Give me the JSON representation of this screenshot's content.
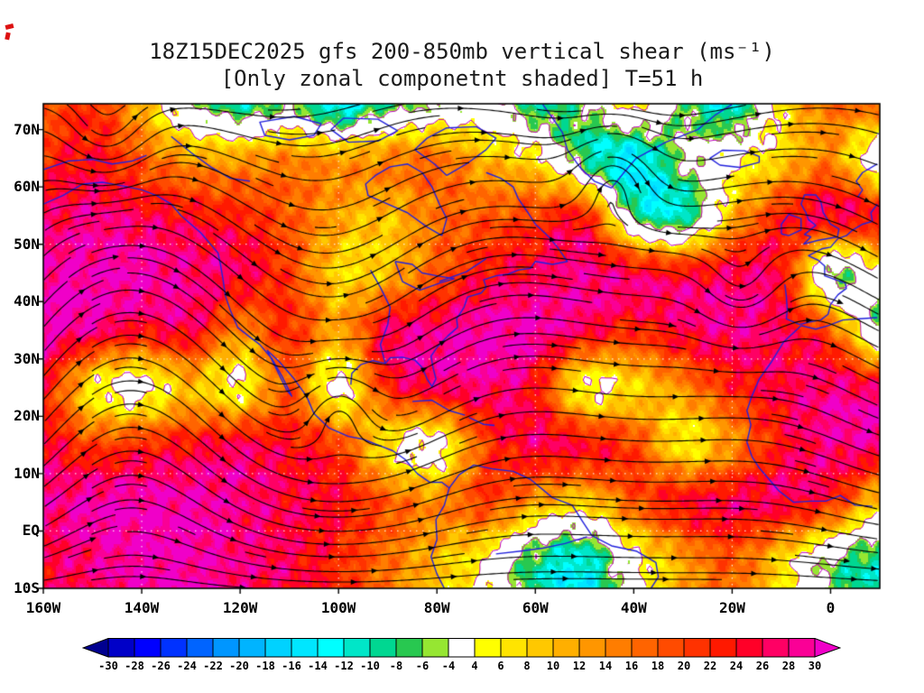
{
  "title": {
    "line1": "18Z15DEC2025 gfs 200-850mb vertical shear (ms⁻¹)",
    "line2": "[Only zonal componetnt shaded] T=51 h"
  },
  "chart_data": {
    "type": "heatmap",
    "title": "18Z15DEC2025 gfs 200-850mb vertical shear (ms⁻¹)",
    "subtitle": "[Only zonal componetnt shaded] T=51 h",
    "model": "gfs",
    "init_time": "18Z15DEC2025",
    "level": "200-850mb",
    "forecast_hour": "T=51 h",
    "units": "ms⁻¹",
    "projection": "latlon",
    "x_axis": {
      "range_lon": [
        -160,
        10
      ],
      "ticks": [
        {
          "label": "160W",
          "lon": -160
        },
        {
          "label": "140W",
          "lon": -140
        },
        {
          "label": "120W",
          "lon": -120
        },
        {
          "label": "100W",
          "lon": -100
        },
        {
          "label": "80W",
          "lon": -80
        },
        {
          "label": "60W",
          "lon": -60
        },
        {
          "label": "40W",
          "lon": -40
        },
        {
          "label": "20W",
          "lon": -20
        },
        {
          "label": "0",
          "lon": 0
        }
      ]
    },
    "y_axis": {
      "range_lat": [
        -10,
        74.5
      ],
      "ticks": [
        {
          "label": "70N",
          "lat": 70
        },
        {
          "label": "60N",
          "lat": 60
        },
        {
          "label": "50N",
          "lat": 50
        },
        {
          "label": "40N",
          "lat": 40
        },
        {
          "label": "30N",
          "lat": 30
        },
        {
          "label": "20N",
          "lat": 20
        },
        {
          "label": "10N",
          "lat": 10
        },
        {
          "label": "EQ",
          "lat": 0
        },
        {
          "label": "10S",
          "lat": -10
        }
      ]
    },
    "colorbar": {
      "orientation": "horizontal",
      "levels": [
        -30,
        -28,
        -26,
        -24,
        -22,
        -20,
        -18,
        -16,
        -14,
        -12,
        -10,
        -8,
        -6,
        -4,
        4,
        6,
        8,
        10,
        12,
        14,
        16,
        18,
        20,
        22,
        24,
        26,
        28,
        30
      ],
      "tick_labels": [
        "-30",
        "-28",
        "-26",
        "-24",
        "-22",
        "-20",
        "-18",
        "-16",
        "-14",
        "-12",
        "-10",
        "-8",
        "-6",
        "-4",
        "4",
        "6",
        "8",
        "10",
        "12",
        "14",
        "16",
        "18",
        "20",
        "22",
        "24",
        "26",
        "28",
        "30"
      ],
      "colors": [
        "#000090",
        "#0000c8",
        "#0000ff",
        "#0032ff",
        "#0064ff",
        "#0096ff",
        "#00b4ff",
        "#00d2ff",
        "#00e6ff",
        "#00ffff",
        "#00e6c8",
        "#00d791",
        "#28c850",
        "#96e632",
        "#ffffff",
        "#ffff00",
        "#ffe400",
        "#ffc800",
        "#ffaf00",
        "#ff9600",
        "#ff7d00",
        "#ff6400",
        "#ff4b00",
        "#ff3200",
        "#ff1900",
        "#ff0028",
        "#ff0064",
        "#fa0096",
        "#f000c8"
      ]
    },
    "field_grid": {
      "comment": "approximate zonal shear values (ms-1) read from shading",
      "lats": [
        75,
        65,
        55,
        45,
        35,
        25,
        15,
        5,
        -5
      ],
      "lons": [
        -160,
        -150,
        -140,
        -130,
        -120,
        -110,
        -100,
        -90,
        -80,
        -70,
        -60,
        -50,
        -40,
        -30,
        -20,
        -10,
        0,
        10
      ],
      "values": [
        [
          18,
          22,
          10,
          -4,
          -10,
          -6,
          -16,
          -8,
          -4,
          -2,
          -10,
          -4,
          6,
          -6,
          -12,
          6,
          16,
          18
        ],
        [
          22,
          24,
          18,
          12,
          12,
          14,
          12,
          14,
          16,
          10,
          6,
          -8,
          -14,
          -4,
          2,
          8,
          14,
          -2
        ],
        [
          26,
          28,
          26,
          24,
          22,
          18,
          12,
          10,
          16,
          18,
          20,
          22,
          -6,
          -10,
          10,
          22,
          26,
          24
        ],
        [
          30,
          30,
          30,
          28,
          26,
          20,
          8,
          10,
          18,
          24,
          26,
          28,
          26,
          24,
          26,
          24,
          -4,
          2
        ],
        [
          30,
          28,
          24,
          26,
          14,
          22,
          12,
          26,
          28,
          30,
          30,
          26,
          22,
          26,
          28,
          26,
          18,
          -4
        ],
        [
          24,
          6,
          2,
          10,
          4,
          18,
          2,
          22,
          26,
          28,
          24,
          4,
          8,
          14,
          22,
          26,
          28,
          26
        ],
        [
          26,
          20,
          22,
          24,
          26,
          24,
          20,
          6,
          2,
          20,
          26,
          24,
          20,
          6,
          14,
          24,
          28,
          28
        ],
        [
          28,
          30,
          30,
          30,
          28,
          26,
          24,
          18,
          14,
          20,
          12,
          8,
          18,
          24,
          26,
          26,
          22,
          8
        ],
        [
          26,
          28,
          30,
          30,
          28,
          26,
          22,
          16,
          10,
          4,
          -8,
          -12,
          2,
          12,
          18,
          8,
          -4,
          -10
        ]
      ]
    },
    "overlays": {
      "streamlines_color": "#000000",
      "coastline_color": "#2222dd",
      "contour_color": "#c000c0",
      "contour_levels": [
        -4,
        4
      ],
      "grid_dot_color": "#ffffff"
    }
  }
}
